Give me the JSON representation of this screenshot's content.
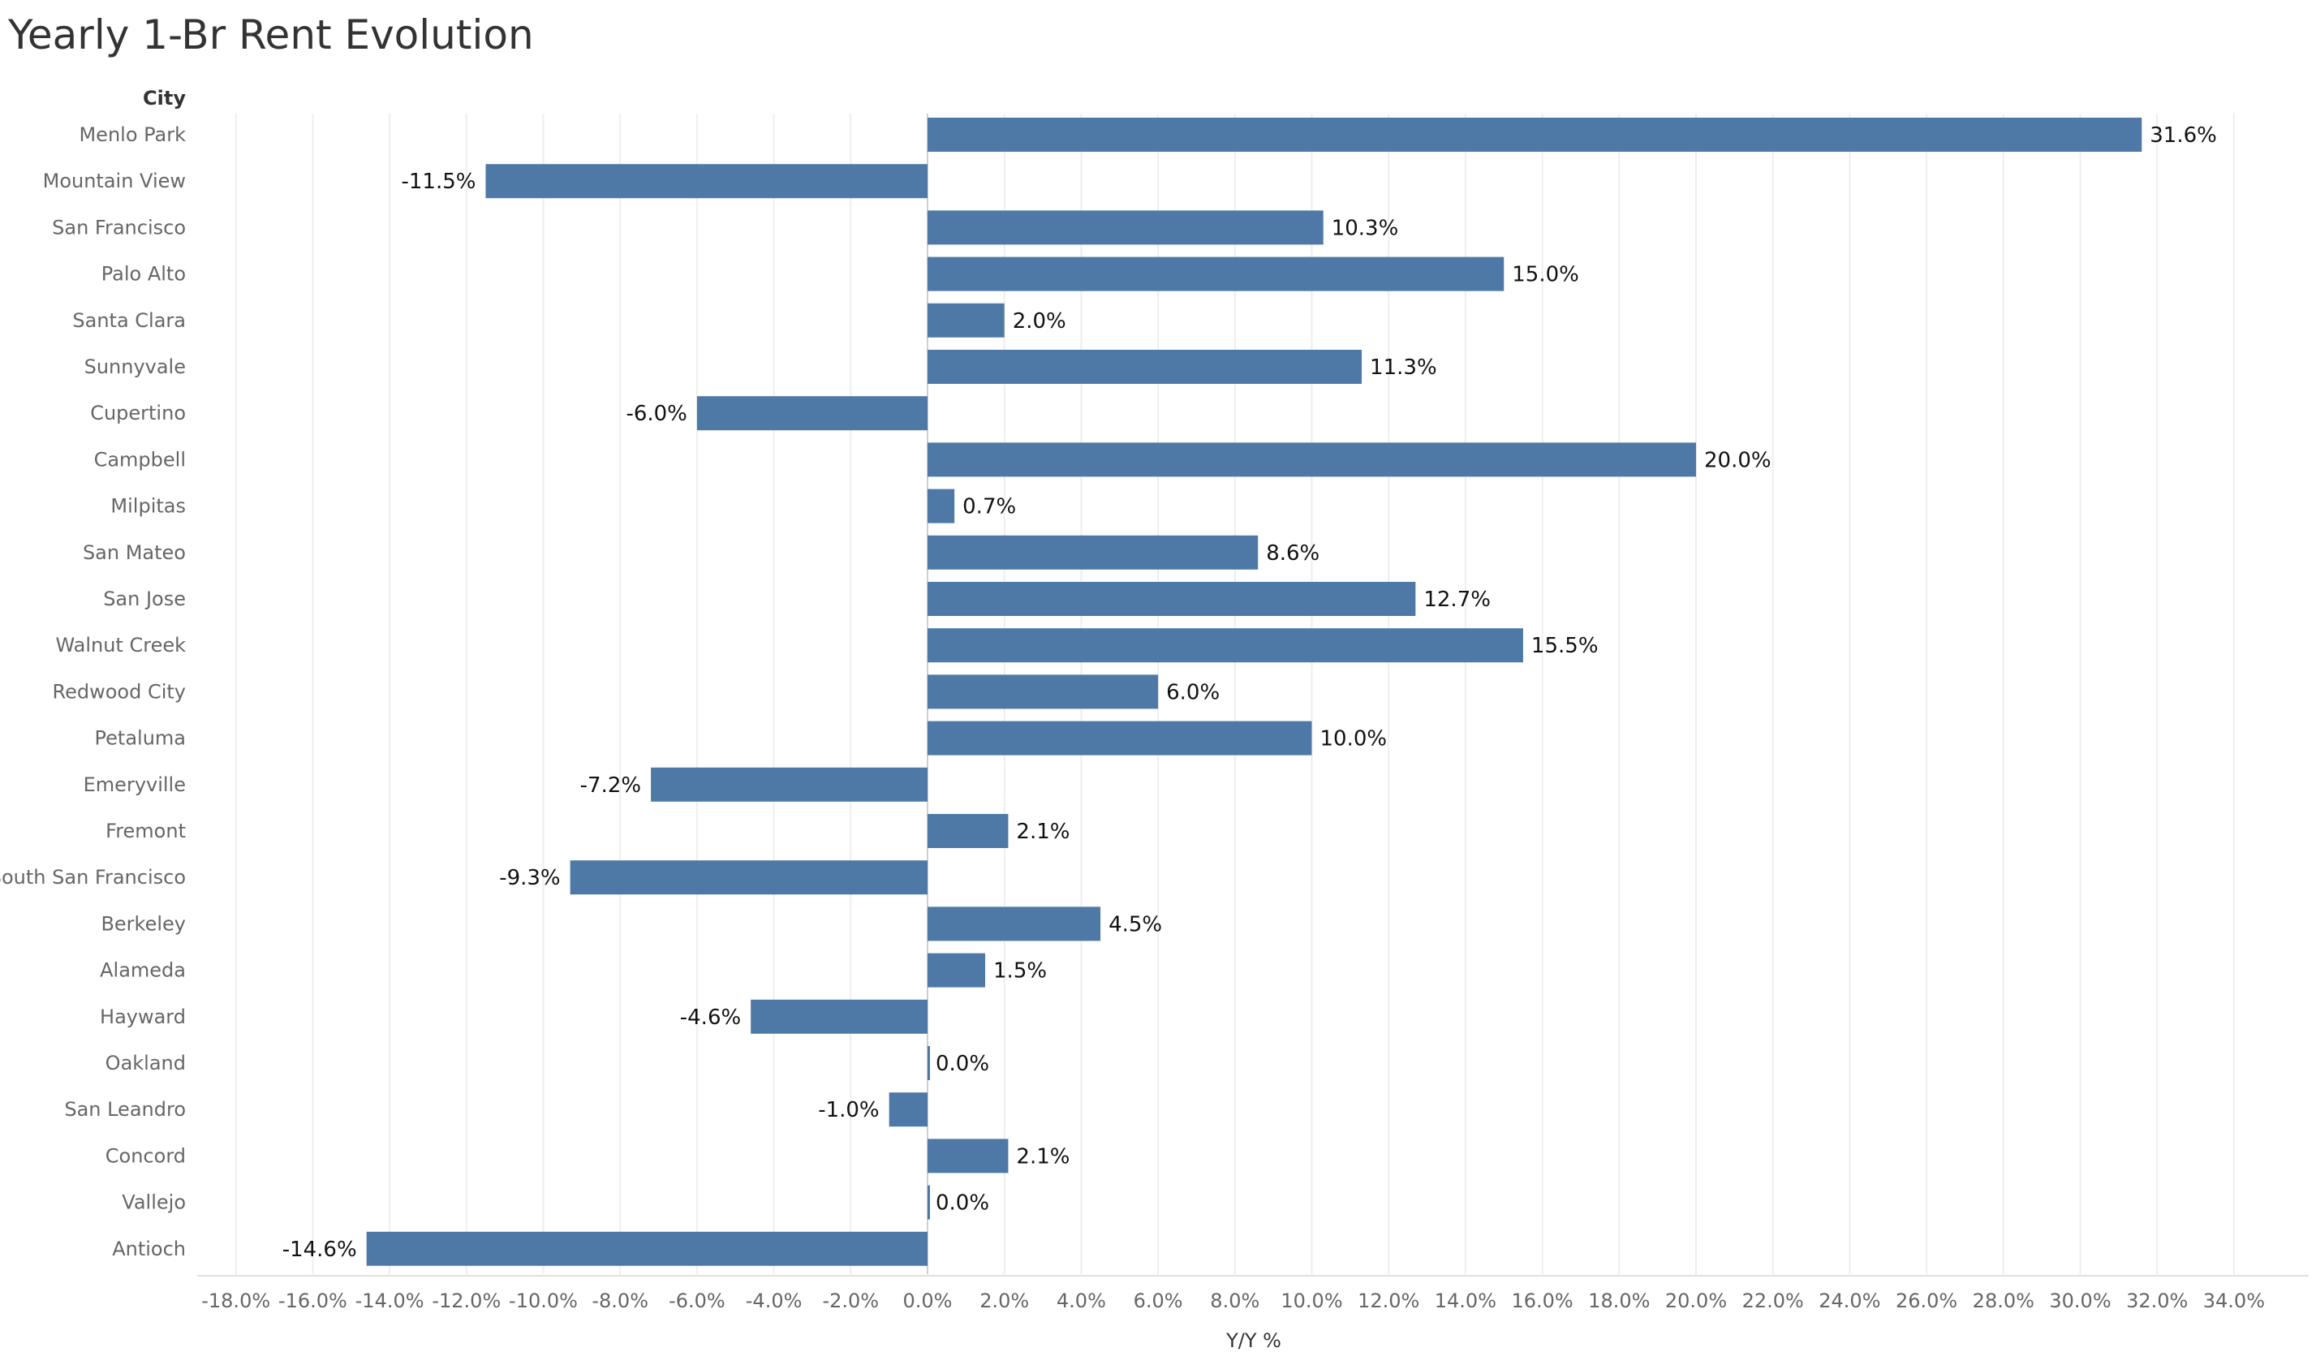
{
  "chart_data": {
    "type": "bar",
    "orientation": "horizontal",
    "title": "Yearly 1-Br Rent Evolution",
    "row_header": "City",
    "xlabel": "Y/Y %",
    "xlim": [
      -19,
      36
    ],
    "xticks": [
      -18,
      -16,
      -14,
      -12,
      -10,
      -8,
      -6,
      -4,
      -2,
      0,
      2,
      4,
      6,
      8,
      10,
      12,
      14,
      16,
      18,
      20,
      22,
      24,
      26,
      28,
      30,
      32,
      34
    ],
    "bar_color": "#4e79a7",
    "grid": true,
    "categories": [
      "Menlo Park",
      "Mountain View",
      "San Francisco",
      "Palo Alto",
      "Santa Clara",
      "Sunnyvale",
      "Cupertino",
      "Campbell",
      "Milpitas",
      "San Mateo",
      "San Jose",
      "Walnut Creek",
      "Redwood City",
      "Petaluma",
      "Emeryville",
      "Fremont",
      "South San Francisco",
      "Berkeley",
      "Alameda",
      "Hayward",
      "Oakland",
      "San Leandro",
      "Concord",
      "Vallejo",
      "Antioch"
    ],
    "values": [
      31.6,
      -11.5,
      10.3,
      15.0,
      2.0,
      11.3,
      -6.0,
      20.0,
      0.7,
      8.6,
      12.7,
      15.5,
      6.0,
      10.0,
      -7.2,
      2.1,
      -9.3,
      4.5,
      1.5,
      -4.6,
      0.0,
      -1.0,
      2.1,
      0.0,
      -14.6
    ]
  }
}
